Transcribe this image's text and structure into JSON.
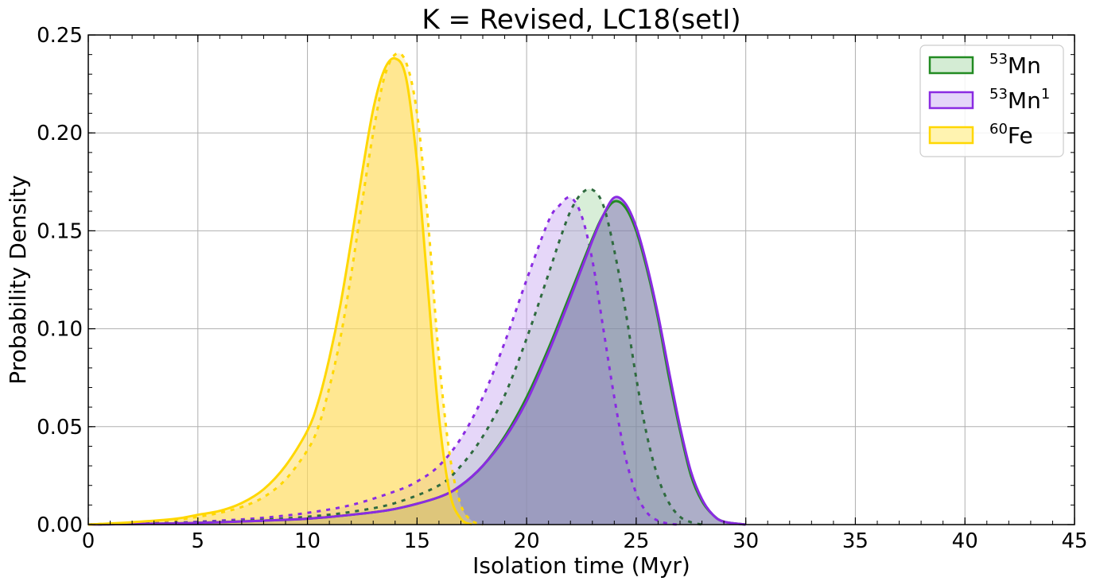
{
  "chart_data": {
    "type": "area",
    "title": "K = Revised, LC18(setI)",
    "xlabel": "Isolation time (Myr)",
    "ylabel": "Probability Density",
    "xlim": [
      0,
      45
    ],
    "ylim": [
      0,
      0.25
    ],
    "xticks": [
      0,
      5,
      10,
      15,
      20,
      25,
      30,
      35,
      40,
      45
    ],
    "xtick_labels": [
      "0",
      "5",
      "10",
      "15",
      "20",
      "25",
      "30",
      "35",
      "40",
      "45"
    ],
    "yticks": [
      0,
      0.05,
      0.1,
      0.15,
      0.2,
      0.25
    ],
    "ytick_labels": [
      "0.00",
      "0.05",
      "0.10",
      "0.15",
      "0.20",
      "0.25"
    ],
    "grid": true,
    "legend_position": "top-right",
    "legend": [
      {
        "sup": "53",
        "base": "Mn",
        "sup_after": "",
        "color": "#228b22",
        "fill": "#d4ecd4"
      },
      {
        "sup": "53",
        "base": "Mn",
        "sup_after": "1",
        "color": "#8a2be2",
        "fill": "#e4d5f9"
      },
      {
        "sup": "60",
        "base": "Fe",
        "sup_after": "",
        "color": "#ffd700",
        "fill": "#fff3b0"
      }
    ],
    "series": [
      {
        "name": "53Mn",
        "color": "#228b22",
        "line": "solid",
        "x": [
          0,
          2,
          4,
          6,
          8,
          10,
          12,
          14,
          16,
          17,
          18,
          19,
          20,
          21,
          22,
          23,
          23.5,
          24,
          24.5,
          25,
          25.5,
          26,
          26.5,
          27,
          27.5,
          28,
          28.5,
          29,
          30
        ],
        "y": [
          0,
          0.0003,
          0.0006,
          0.0012,
          0.002,
          0.003,
          0.005,
          0.008,
          0.014,
          0.02,
          0.03,
          0.045,
          0.065,
          0.09,
          0.118,
          0.146,
          0.158,
          0.165,
          0.162,
          0.15,
          0.13,
          0.105,
          0.075,
          0.048,
          0.025,
          0.012,
          0.005,
          0.0015,
          0
        ]
      },
      {
        "name": "53Mn (dashed)",
        "color": "#2f6b3f",
        "line": "dashed",
        "x": [
          0,
          2,
          4,
          6,
          8,
          10,
          12,
          14,
          16,
          17,
          18,
          19,
          20,
          21,
          21.5,
          22,
          22.5,
          23,
          23.5,
          24,
          24.5,
          25,
          25.5,
          26,
          26.5,
          27,
          27.5,
          28
        ],
        "y": [
          0,
          0.0004,
          0.0008,
          0.0015,
          0.0025,
          0.004,
          0.0065,
          0.011,
          0.02,
          0.03,
          0.045,
          0.066,
          0.095,
          0.128,
          0.145,
          0.16,
          0.169,
          0.171,
          0.163,
          0.14,
          0.11,
          0.075,
          0.045,
          0.024,
          0.011,
          0.004,
          0.0012,
          0
        ]
      },
      {
        "name": "53Mn1",
        "color": "#8a2be2",
        "line": "solid",
        "x": [
          0,
          2,
          4,
          6,
          8,
          10,
          12,
          14,
          16,
          17,
          18,
          19,
          20,
          21,
          22,
          23,
          23.5,
          24,
          24.5,
          25,
          25.5,
          26,
          26.5,
          27,
          27.5,
          28,
          28.5,
          29,
          30
        ],
        "y": [
          0,
          0.0003,
          0.0006,
          0.0012,
          0.002,
          0.003,
          0.005,
          0.008,
          0.014,
          0.02,
          0.03,
          0.044,
          0.063,
          0.088,
          0.116,
          0.145,
          0.158,
          0.167,
          0.164,
          0.152,
          0.132,
          0.107,
          0.078,
          0.05,
          0.027,
          0.013,
          0.005,
          0.0015,
          0
        ]
      },
      {
        "name": "53Mn1 (dashed)",
        "color": "#8a2be2",
        "line": "dashed",
        "x": [
          0,
          2,
          4,
          6,
          8,
          10,
          12,
          14,
          15,
          16,
          17,
          18,
          19,
          20,
          21,
          21.5,
          22,
          22.5,
          23,
          23.5,
          24,
          24.5,
          25,
          25.5,
          26,
          26.5,
          27
        ],
        "y": [
          0,
          0.0005,
          0.001,
          0.002,
          0.0035,
          0.006,
          0.01,
          0.017,
          0.022,
          0.03,
          0.044,
          0.065,
          0.093,
          0.125,
          0.155,
          0.163,
          0.167,
          0.158,
          0.135,
          0.1,
          0.065,
          0.035,
          0.016,
          0.006,
          0.002,
          0.0005,
          0
        ]
      },
      {
        "name": "60Fe",
        "color": "#ffd700",
        "line": "solid",
        "x": [
          0,
          2,
          4,
          5,
          6,
          7,
          8,
          9,
          10,
          10.5,
          11,
          11.5,
          12,
          12.5,
          13,
          13.5,
          14,
          14.5,
          15,
          15.5,
          16,
          16.5,
          17,
          17.5
        ],
        "y": [
          0,
          0.0012,
          0.003,
          0.005,
          0.007,
          0.011,
          0.018,
          0.03,
          0.048,
          0.063,
          0.085,
          0.112,
          0.145,
          0.18,
          0.212,
          0.232,
          0.238,
          0.228,
          0.185,
          0.12,
          0.055,
          0.016,
          0.003,
          0
        ]
      },
      {
        "name": "60Fe (dashed)",
        "color": "#ffd700",
        "line": "dashed",
        "x": [
          0,
          2,
          4,
          5,
          6,
          7,
          8,
          9,
          10,
          10.5,
          11,
          11.5,
          12,
          12.5,
          13,
          13.5,
          14,
          14.5,
          15,
          15.5,
          16,
          16.5,
          17,
          17.5,
          18
        ],
        "y": [
          0,
          0.001,
          0.0025,
          0.004,
          0.006,
          0.009,
          0.014,
          0.023,
          0.038,
          0.05,
          0.07,
          0.095,
          0.128,
          0.165,
          0.2,
          0.228,
          0.24,
          0.236,
          0.21,
          0.155,
          0.085,
          0.035,
          0.01,
          0.002,
          0
        ]
      }
    ]
  }
}
